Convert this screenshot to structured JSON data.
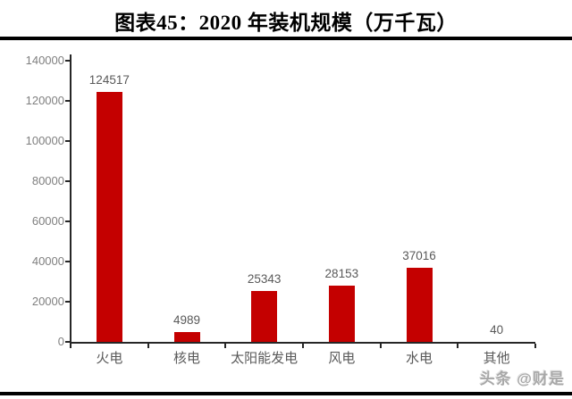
{
  "header": {
    "title": "图表45：2020 年装机规模（万千瓦）"
  },
  "watermark": "头条 @财是",
  "colors": {
    "bar": "#c40000",
    "axis": "#262626",
    "y_tick_label": "#7f7f7f",
    "value_label": "#595959",
    "category_label": "#595959",
    "rule": "#000000",
    "background": "#ffffff"
  },
  "chart_data": {
    "type": "bar",
    "title": "图表45：2020 年装机规模（万千瓦）",
    "categories": [
      "火电",
      "核电",
      "太阳能发电",
      "风电",
      "水电",
      "其他"
    ],
    "values": [
      124517,
      4989,
      25343,
      28153,
      37016,
      40
    ],
    "value_labels_shown": true,
    "xlabel": "",
    "ylabel": "",
    "ylim": [
      0,
      140000
    ],
    "yticks": [
      0,
      20000,
      40000,
      60000,
      80000,
      100000,
      120000,
      140000
    ],
    "grid": false,
    "legend": "none",
    "bar_color": "#c40000"
  }
}
